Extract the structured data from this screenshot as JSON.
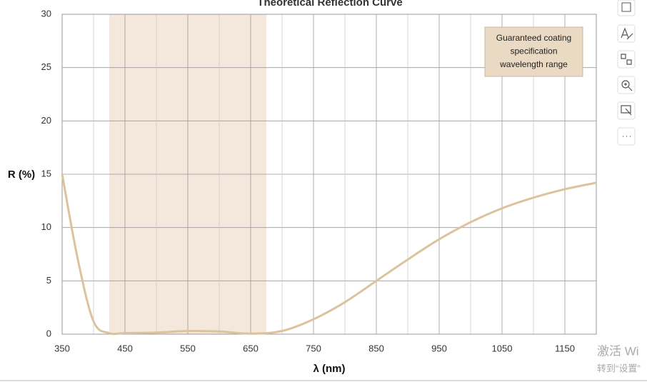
{
  "chart_data": {
    "type": "line",
    "title": "Theoretical Reflection Curve",
    "x_label": "λ (nm)",
    "y_label": "R (%)",
    "x": [
      350,
      375,
      400,
      425,
      450,
      500,
      550,
      600,
      650,
      700,
      750,
      800,
      850,
      900,
      950,
      1000,
      1050,
      1100,
      1150,
      1200
    ],
    "series": [
      {
        "name": "R",
        "color": "#dcc39d",
        "values": [
          15,
          7,
          1.2,
          0.1,
          0.1,
          0.15,
          0.3,
          0.25,
          0.05,
          0.3,
          1.4,
          3,
          5,
          7,
          8.9,
          10.5,
          11.8,
          12.8,
          13.6,
          14.2
        ]
      }
    ],
    "xlim": [
      350,
      1200
    ],
    "xticks": [
      350,
      450,
      550,
      650,
      750,
      850,
      950,
      1050,
      1150
    ],
    "ylim": [
      0,
      30
    ],
    "yticks": [
      0,
      5,
      10,
      15,
      20,
      25,
      30
    ],
    "grid": true,
    "x_minor_grid": true,
    "band": {
      "range": [
        425,
        675
      ],
      "color": "#f3e8db"
    },
    "annotation": {
      "lines": [
        "Guaranteed coating",
        "specification",
        "wavelength range"
      ]
    }
  },
  "watermark": [
    "激活 Wi",
    "转到“设置”"
  ]
}
